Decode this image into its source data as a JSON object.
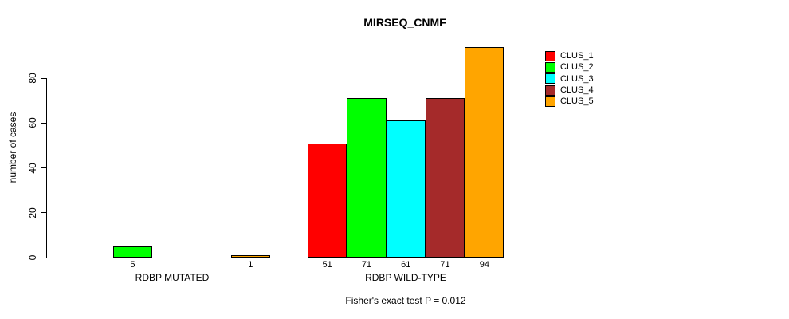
{
  "chart_data": {
    "type": "bar",
    "title": "MIRSEQ_CNMF",
    "xlabel": "",
    "ylabel": "number of cases",
    "categories": [
      "RDBP MUTATED",
      "RDBP WILD-TYPE"
    ],
    "series": [
      {
        "name": "CLUS_1",
        "color": "#FF0000",
        "values": [
          0,
          51
        ]
      },
      {
        "name": "CLUS_2",
        "color": "#00FF00",
        "values": [
          5,
          71
        ]
      },
      {
        "name": "CLUS_3",
        "color": "#00FFFF",
        "values": [
          0,
          61
        ]
      },
      {
        "name": "CLUS_4",
        "color": "#A52A2A",
        "values": [
          0,
          71
        ]
      },
      {
        "name": "CLUS_5",
        "color": "#FFA500",
        "values": [
          1,
          94
        ]
      }
    ],
    "bar_value_labels": {
      "RDBP MUTATED": [
        null,
        "5",
        null,
        null,
        "1"
      ],
      "RDBP WILD-TYPE": [
        "51",
        "71",
        "61",
        "71",
        "94"
      ]
    },
    "yticks": [
      0,
      20,
      40,
      60,
      80
    ],
    "ylim": [
      0,
      94
    ],
    "grid": false,
    "legend_position": "right",
    "annotation": "Fisher's exact test P = 0.012"
  }
}
